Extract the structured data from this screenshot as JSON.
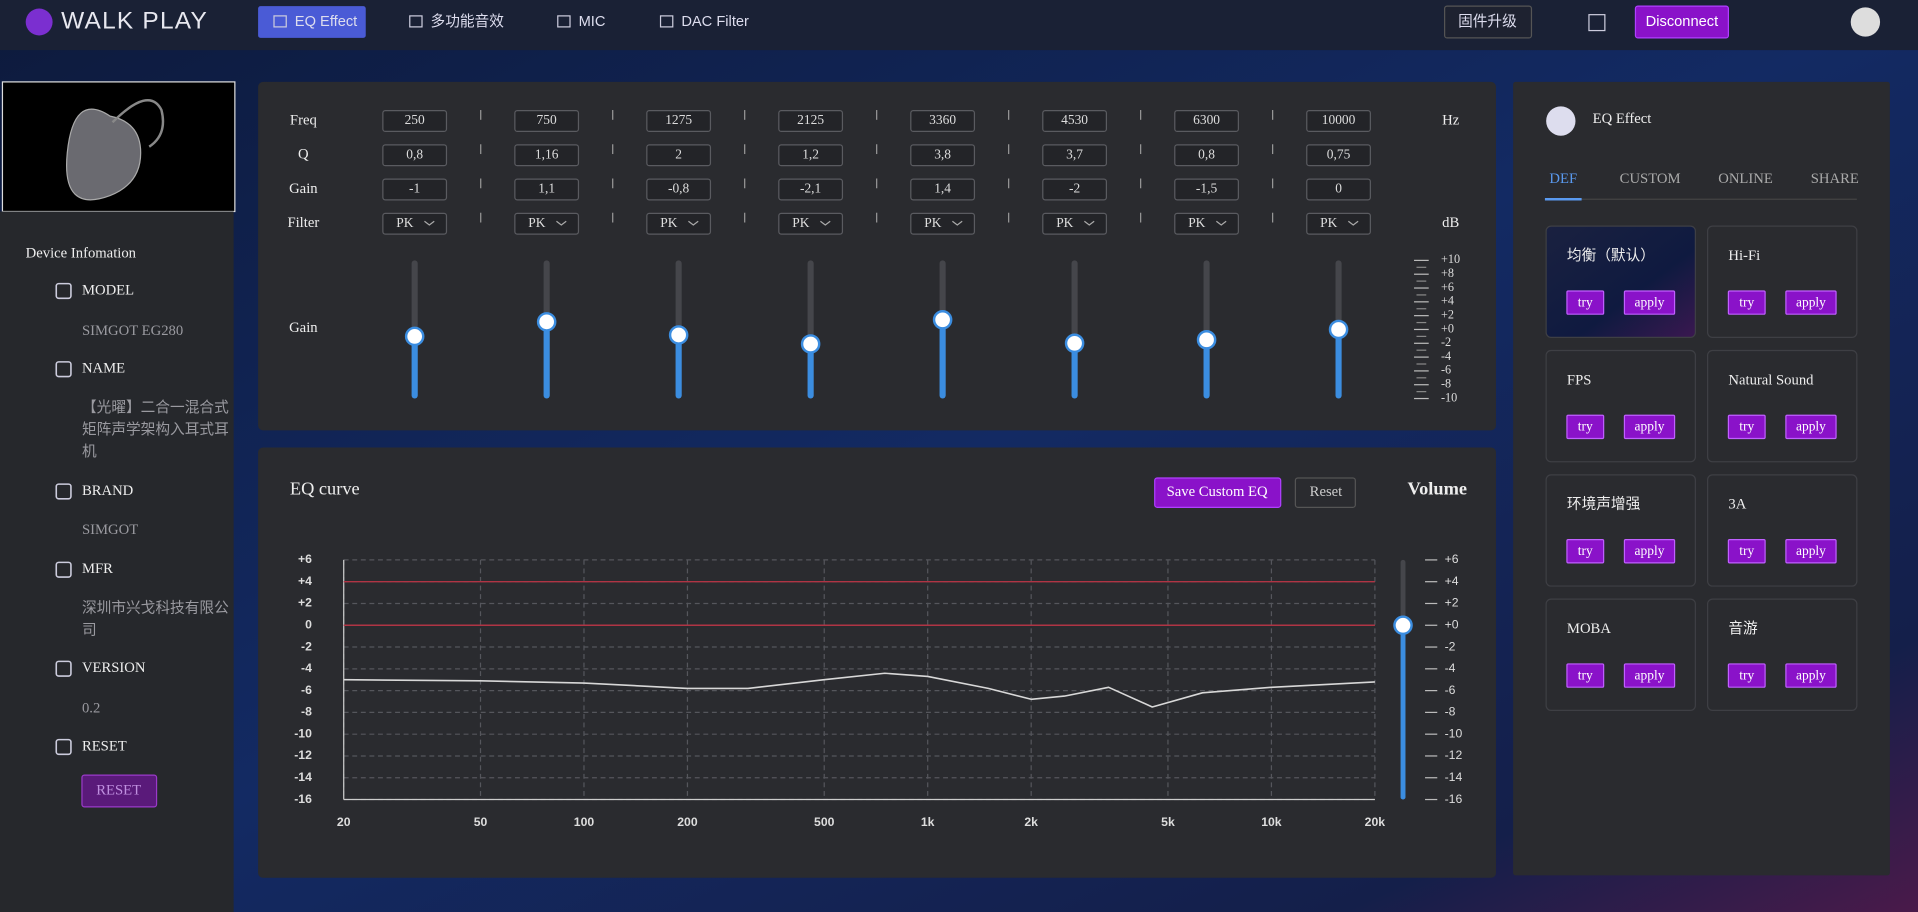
{
  "nav": {
    "brand": "WALK PLAY",
    "tabs": [
      "EQ Effect",
      "多功能音效",
      "MIC",
      "DAC Filter"
    ],
    "active_tab": 0,
    "firmware": "固件升级",
    "disconnect": "Disconnect"
  },
  "device": {
    "title": "Device Infomation",
    "items": [
      {
        "label": "MODEL",
        "value": "SIMGOT EG280"
      },
      {
        "label": "NAME",
        "value": "【光曜】二合一混合式矩阵声学架构入耳式耳机"
      },
      {
        "label": "BRAND",
        "value": "SIMGOT"
      },
      {
        "label": "MFR",
        "value": "深圳市兴戈科技有限公司"
      },
      {
        "label": "VERSION",
        "value": "0.2"
      },
      {
        "label": "RESET",
        "button": "RESET"
      }
    ]
  },
  "eq": {
    "row_labels": [
      "Freq",
      "Q",
      "Gain",
      "Filter"
    ],
    "freq_unit": "Hz",
    "filter_unit": "dB",
    "slider_label": "Gain",
    "freq": [
      250,
      750,
      1275,
      2125,
      3360,
      4530,
      6300,
      10000
    ],
    "q": [
      "0,8",
      "1,16",
      "2",
      "1,2",
      "3,8",
      "3,7",
      "0,8",
      "0,75"
    ],
    "gain": [
      -1,
      1.1,
      -0.8,
      -2.1,
      1.4,
      -2,
      -1.5,
      0
    ],
    "gain_labels": [
      "-1",
      "1,1",
      "-0,8",
      "-2,1",
      "1,4",
      "-2",
      "-1,5",
      "0"
    ],
    "filter": [
      "PK",
      "PK",
      "PK",
      "PK",
      "PK",
      "PK",
      "PK",
      "PK"
    ],
    "slider_lim": [
      -10,
      10
    ],
    "slider_ticks": [
      {
        "value": 10,
        "label": "+10"
      },
      {
        "value": 8,
        "label": "+8"
      },
      {
        "value": 6,
        "label": "+6"
      },
      {
        "value": 4,
        "label": "+4"
      },
      {
        "value": 2,
        "label": "+2"
      },
      {
        "value": 0,
        "label": "+0"
      },
      -2,
      -4,
      -6,
      -8,
      -10
    ],
    "color": "#3b8de0"
  },
  "chart_data": {
    "type": "line",
    "title": "EQ curve",
    "save_button": "Save Custom EQ",
    "reset_button": "Reset",
    "x": [
      20,
      50,
      100,
      200,
      300,
      500,
      750,
      1000,
      1500,
      2000,
      2500,
      3360,
      4500,
      6300,
      10000,
      20000
    ],
    "values": [
      -5.0,
      -5.1,
      -5.3,
      -5.8,
      -5.8,
      -5.0,
      -4.4,
      -4.7,
      -5.8,
      -6.8,
      -6.5,
      -5.7,
      -7.5,
      -6.2,
      -5.7,
      -5.2
    ],
    "color": "#d8d8d8",
    "xscale": "log",
    "xlim": [
      20,
      20000
    ],
    "xticks": [
      20,
      50,
      100,
      200,
      500,
      {
        "value": 1000,
        "label": "1k"
      },
      {
        "value": 2000,
        "label": "2k"
      },
      {
        "value": 5000,
        "label": "5k"
      },
      {
        "value": 10000,
        "label": "10k"
      },
      {
        "value": 20000,
        "label": "20k"
      }
    ],
    "ylim": [
      -16,
      6
    ],
    "yticks": [
      {
        "value": 6,
        "label": "+6"
      },
      {
        "value": 4,
        "label": "+4"
      },
      {
        "value": 2,
        "label": "+2"
      },
      0,
      -2,
      -4,
      -6,
      -8,
      -10,
      -12,
      -14,
      -16
    ],
    "grid": true,
    "reference_lines": [
      4,
      0
    ],
    "reference_color": "#b03444",
    "volume_label": "Volume",
    "volume": 0,
    "volume_lim": [
      -16,
      6
    ],
    "volume_ticks": [
      {
        "value": 6,
        "label": "+6"
      },
      {
        "value": 4,
        "label": "+4"
      },
      {
        "value": 2,
        "label": "+2"
      },
      {
        "value": 0,
        "label": "+0"
      },
      -2,
      -4,
      -6,
      -8,
      -10,
      -12,
      -14,
      -16
    ]
  },
  "presets": {
    "title": "EQ Effect",
    "tabs": [
      "DEF",
      "CUSTOM",
      "ONLINE",
      "SHARE"
    ],
    "active_tab": 0,
    "items": [
      "均衡（默认）",
      "Hi-Fi",
      "FPS",
      "Natural Sound",
      "环境声增强",
      "3A",
      "MOBA",
      "音游"
    ],
    "try": "try",
    "apply": "apply"
  }
}
